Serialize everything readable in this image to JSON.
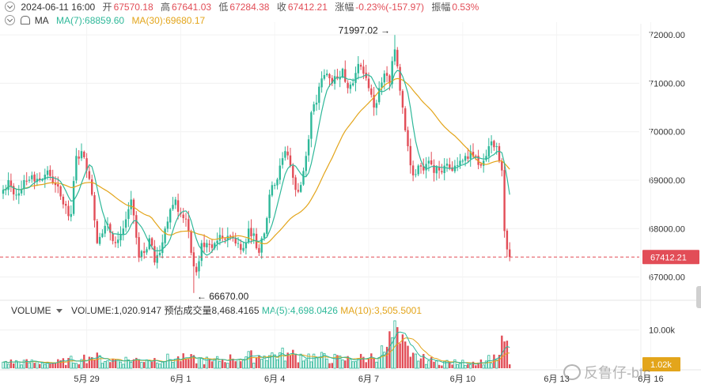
{
  "header": {
    "datetime": "2024-06-11 16:00",
    "open_label": "开",
    "open": "67570.18",
    "high_label": "高",
    "high": "67641.03",
    "low_label": "低",
    "low": "67284.38",
    "close_label": "收",
    "close": "67412.21",
    "change_label": "涨幅",
    "change": "-0.23%(-157.97)",
    "amplitude_label": "振幅",
    "amplitude": "0.53%",
    "ma_label": "MA",
    "ma7": "MA(7):68859.60",
    "ma30": "MA(30):69680.17"
  },
  "volume_header": {
    "label": "VOLUME",
    "volume": "VOLUME:1,020.9147",
    "forecast_label": "预估成交量",
    "forecast": "8,468.4165",
    "ma5": "MA(5):4,698.0426",
    "ma10": "MA(10):3,505.5001"
  },
  "watermark": "反鲁仔-btc",
  "colors": {
    "up": "#2eb899",
    "down": "#e24d57",
    "ma7": "#2eb899",
    "ma30": "#e3a51b",
    "last_price_line": "#e24d57"
  },
  "icons": [
    "chevron-down-icon",
    "bell-icon",
    "dropdown-caret-icon",
    "watermark-logo-icon"
  ],
  "chart_data": {
    "type": "candlestick",
    "y_axis": {
      "ticks": [
        "72000.00",
        "71000.00",
        "70000.00",
        "69000.00",
        "68000.00",
        "67000.00"
      ],
      "range": [
        66650,
        72100
      ],
      "last_price_label": "67412.21",
      "last_price": 67412.21
    },
    "volume_axis": {
      "ticks": [
        "10.00k"
      ],
      "range": [
        0,
        12800
      ],
      "last_volume_label": "1.02k"
    },
    "x_axis": {
      "ticks": [
        {
          "label": "5月 29",
          "index": 32
        },
        {
          "label": "6月 1",
          "index": 68
        },
        {
          "label": "6月 4",
          "index": 104
        },
        {
          "label": "6月 7",
          "index": 140
        },
        {
          "label": "6月 10",
          "index": 176
        },
        {
          "label": "6月 13",
          "index": 212
        },
        {
          "label": "6月 16",
          "index": 248
        }
      ]
    },
    "annotations": [
      {
        "text": "71997.02",
        "index": 150,
        "price": 71997.02,
        "arrow": "right"
      },
      {
        "text": "66670.00",
        "index": 73,
        "price": 66670,
        "arrow": "left"
      }
    ],
    "anchors": [
      [
        0,
        68800
      ],
      [
        2,
        69000
      ],
      [
        5,
        68700
      ],
      [
        8,
        69000
      ],
      [
        11,
        69100
      ],
      [
        14,
        69000
      ],
      [
        17,
        69200
      ],
      [
        20,
        68900
      ],
      [
        23,
        68500
      ],
      [
        26,
        68300
      ],
      [
        28,
        69500
      ],
      [
        30,
        69600
      ],
      [
        32,
        69200
      ],
      [
        34,
        68700
      ],
      [
        36,
        67700
      ],
      [
        38,
        67900
      ],
      [
        40,
        68100
      ],
      [
        43,
        67700
      ],
      [
        46,
        68000
      ],
      [
        49,
        68600
      ],
      [
        52,
        67400
      ],
      [
        54,
        67500
      ],
      [
        56,
        67800
      ],
      [
        58,
        67300
      ],
      [
        60,
        67500
      ],
      [
        62,
        68000
      ],
      [
        64,
        68400
      ],
      [
        66,
        68600
      ],
      [
        68,
        68300
      ],
      [
        70,
        68200
      ],
      [
        72,
        67500
      ],
      [
        74,
        67100
      ],
      [
        76,
        67700
      ],
      [
        78,
        67700
      ],
      [
        80,
        67600
      ],
      [
        82,
        67750
      ],
      [
        84,
        67800
      ],
      [
        86,
        67850
      ],
      [
        88,
        67800
      ],
      [
        90,
        67700
      ],
      [
        92,
        67600
      ],
      [
        94,
        68000
      ],
      [
        96,
        67900
      ],
      [
        98,
        67500
      ],
      [
        100,
        67900
      ],
      [
        102,
        68700
      ],
      [
        104,
        68900
      ],
      [
        106,
        69300
      ],
      [
        108,
        69600
      ],
      [
        110,
        69300
      ],
      [
        112,
        68800
      ],
      [
        114,
        68900
      ],
      [
        116,
        69500
      ],
      [
        118,
        70400
      ],
      [
        120,
        70600
      ],
      [
        122,
        71100
      ],
      [
        124,
        71200
      ],
      [
        126,
        71000
      ],
      [
        128,
        71100
      ],
      [
        130,
        71300
      ],
      [
        132,
        70900
      ],
      [
        134,
        71000
      ],
      [
        136,
        71400
      ],
      [
        138,
        71200
      ],
      [
        140,
        70900
      ],
      [
        142,
        70500
      ],
      [
        144,
        70900
      ],
      [
        146,
        71200
      ],
      [
        148,
        71000
      ],
      [
        150,
        71700
      ],
      [
        151,
        71350
      ],
      [
        153,
        70500
      ],
      [
        155,
        69700
      ],
      [
        157,
        69100
      ],
      [
        159,
        69300
      ],
      [
        161,
        69200
      ],
      [
        163,
        69400
      ],
      [
        165,
        69150
      ],
      [
        167,
        69200
      ],
      [
        169,
        69300
      ],
      [
        171,
        69250
      ],
      [
        173,
        69300
      ],
      [
        175,
        69400
      ],
      [
        177,
        69500
      ],
      [
        179,
        69600
      ],
      [
        181,
        69500
      ],
      [
        183,
        69300
      ],
      [
        185,
        69500
      ],
      [
        187,
        69800
      ],
      [
        189,
        69700
      ],
      [
        190,
        69400
      ],
      [
        191,
        69200
      ],
      [
        192,
        67950
      ],
      [
        193,
        67570
      ],
      [
        194,
        67412
      ]
    ],
    "volume_profile": [
      [
        0,
        1600
      ],
      [
        20,
        1400
      ],
      [
        30,
        2300
      ],
      [
        33,
        3000
      ],
      [
        40,
        2000
      ],
      [
        55,
        2200
      ],
      [
        70,
        2400
      ],
      [
        80,
        1800
      ],
      [
        88,
        2500
      ],
      [
        100,
        3200
      ],
      [
        110,
        3400
      ],
      [
        120,
        2700
      ],
      [
        130,
        2200
      ],
      [
        140,
        2600
      ],
      [
        146,
        4200
      ],
      [
        149,
        8000
      ],
      [
        150,
        12400
      ],
      [
        152,
        6500
      ],
      [
        156,
        3000
      ],
      [
        165,
        1700
      ],
      [
        175,
        1300
      ],
      [
        185,
        1900
      ],
      [
        190,
        3500
      ],
      [
        192,
        7000
      ],
      [
        193,
        7200
      ],
      [
        194,
        1021
      ]
    ]
  }
}
